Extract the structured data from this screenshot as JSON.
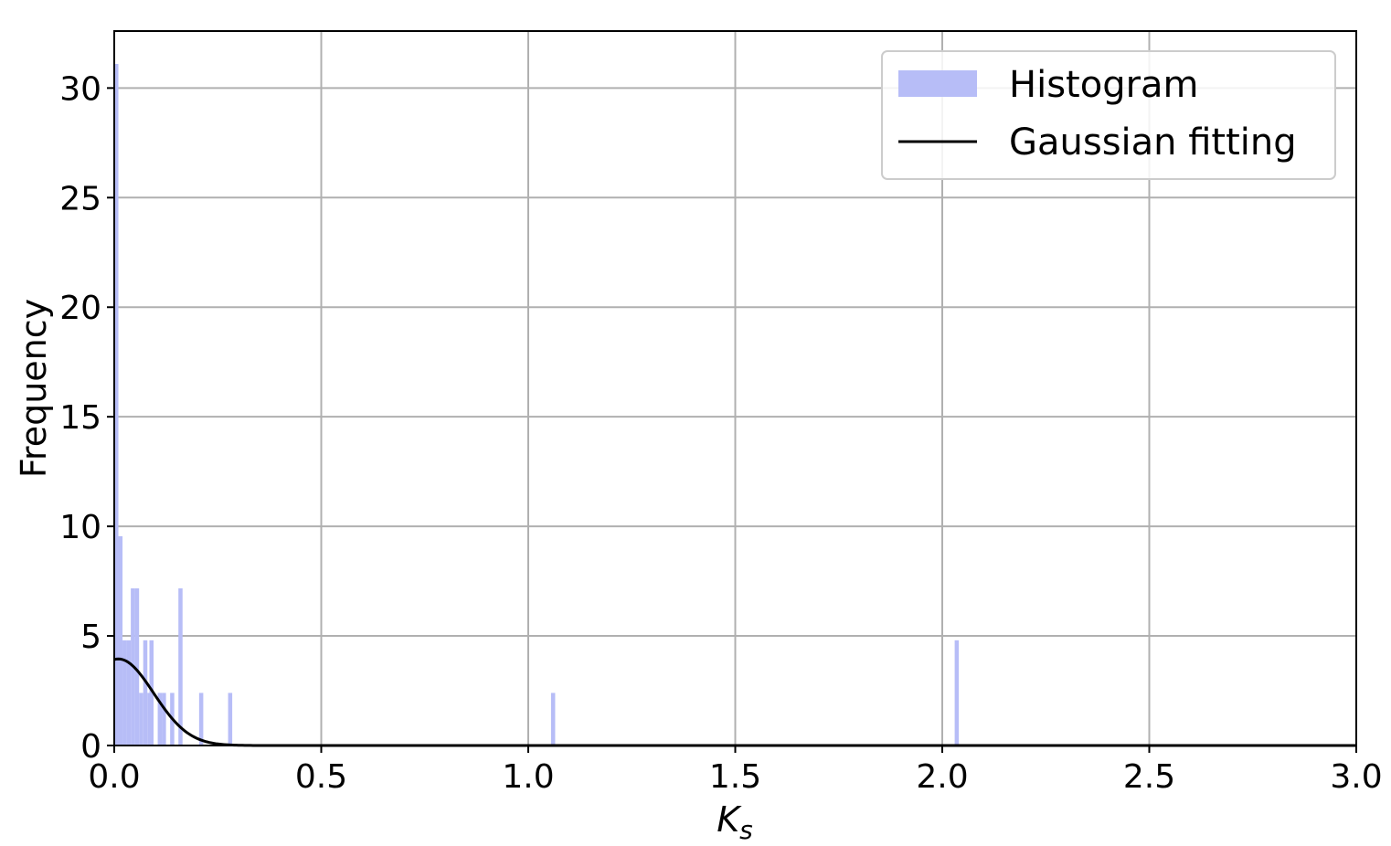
{
  "chart_data": {
    "type": "bar",
    "xlabel_main": "K",
    "xlabel_sub": "s",
    "ylabel": "Frequency",
    "xlim": [
      0,
      3
    ],
    "ylim": [
      0,
      32.6
    ],
    "xticks": [
      0,
      0.5,
      1,
      1.5,
      2,
      2.5,
      3
    ],
    "xtick_labels": [
      "0.0",
      "0.5",
      "1.0",
      "1.5",
      "2.0",
      "2.5",
      "3.0"
    ],
    "yticks": [
      0,
      5,
      10,
      15,
      20,
      25,
      30
    ],
    "ytick_labels": [
      "0",
      "5",
      "10",
      "15",
      "20",
      "25",
      "30"
    ],
    "grid": true,
    "legend_position": "top-right",
    "bar_width": 0.01,
    "histogram": {
      "name": "Histogram",
      "color": "#b7bdf7",
      "bins": [
        {
          "x": 0.0,
          "y": 31.1
        },
        {
          "x": 0.01,
          "y": 9.55
        },
        {
          "x": 0.02,
          "y": 4.8
        },
        {
          "x": 0.03,
          "y": 4.8
        },
        {
          "x": 0.04,
          "y": 7.17
        },
        {
          "x": 0.05,
          "y": 7.17
        },
        {
          "x": 0.06,
          "y": 2.4
        },
        {
          "x": 0.07,
          "y": 4.8
        },
        {
          "x": 0.08,
          "y": 2.4
        },
        {
          "x": 0.085,
          "y": 4.8
        },
        {
          "x": 0.105,
          "y": 2.4
        },
        {
          "x": 0.115,
          "y": 2.4
        },
        {
          "x": 0.135,
          "y": 2.4
        },
        {
          "x": 0.155,
          "y": 7.17
        },
        {
          "x": 0.205,
          "y": 2.4
        },
        {
          "x": 0.275,
          "y": 2.4
        },
        {
          "x": 1.055,
          "y": 2.4
        },
        {
          "x": 2.03,
          "y": 4.8
        }
      ]
    },
    "gaussian": {
      "name": "Gaussian fitting",
      "color": "#000000",
      "amplitude": 3.95,
      "mean": 0.01,
      "sigma": 0.085,
      "x_range": [
        0,
        3
      ]
    }
  }
}
